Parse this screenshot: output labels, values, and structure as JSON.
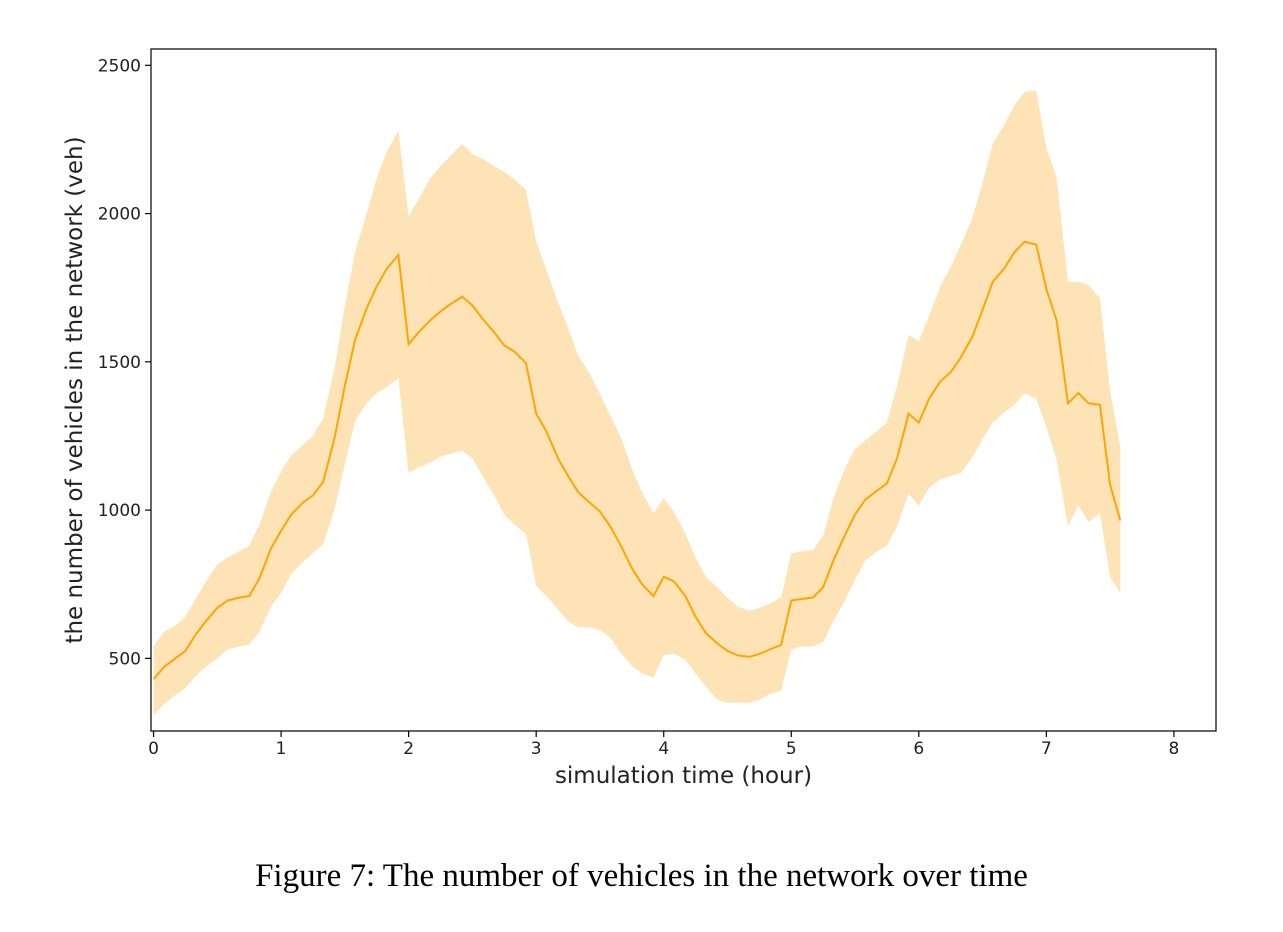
{
  "caption": "Figure 7: The number of vehicles in the network over time",
  "chart_data": {
    "type": "line",
    "title": "",
    "xlabel": "simulation time (hour)",
    "ylabel": "the number of vehicles in the network (veh)",
    "xlim": [
      -0.02,
      8.33
    ],
    "ylim": [
      255,
      2555
    ],
    "x_ticks": [
      0,
      1,
      2,
      3,
      4,
      5,
      6,
      7,
      8
    ],
    "y_ticks": [
      500,
      1000,
      1500,
      2000,
      2500
    ],
    "grid": false,
    "legend": "none",
    "colors": {
      "line": "#ffa500",
      "band": "#fde3b6"
    },
    "series": [
      {
        "x": [
          0,
          0.08,
          0.17,
          0.25,
          0.33,
          0.42,
          0.5,
          0.58,
          0.67,
          0.75,
          0.83,
          0.92,
          1.0,
          1.08,
          1.17,
          1.25,
          1.33,
          1.42,
          1.5,
          1.58,
          1.67,
          1.75,
          1.83,
          1.92,
          2.0,
          2.08,
          2.17,
          2.25,
          2.33,
          2.42,
          2.5,
          2.58,
          2.67,
          2.75,
          2.83,
          2.92,
          3.0,
          3.08,
          3.17,
          3.25,
          3.33,
          3.42,
          3.5,
          3.58,
          3.67,
          3.75,
          3.83,
          3.92,
          4.0,
          4.08,
          4.17,
          4.25,
          4.33,
          4.42,
          4.5,
          4.58,
          4.67,
          4.75,
          4.83,
          4.92,
          5.0,
          5.08,
          5.17,
          5.25,
          5.33,
          5.42,
          5.5,
          5.58,
          5.67,
          5.75,
          5.83,
          5.92,
          6.0,
          6.08,
          6.17,
          6.25,
          6.33,
          6.42,
          6.5,
          6.58,
          6.67,
          6.75,
          6.83,
          6.92,
          7.0,
          7.08,
          7.17,
          7.25,
          7.33,
          7.42,
          7.5,
          7.58
        ],
        "mean": [
          430,
          470,
          500,
          525,
          580,
          630,
          670,
          695,
          705,
          710,
          770,
          870,
          930,
          985,
          1025,
          1050,
          1095,
          1245,
          1420,
          1575,
          1680,
          1755,
          1815,
          1860,
          1560,
          1600,
          1640,
          1670,
          1695,
          1720,
          1690,
          1645,
          1600,
          1555,
          1535,
          1495,
          1325,
          1265,
          1175,
          1115,
          1060,
          1025,
          995,
          945,
          875,
          805,
          750,
          710,
          775,
          760,
          710,
          640,
          585,
          550,
          525,
          510,
          505,
          515,
          530,
          545,
          695,
          700,
          705,
          740,
          830,
          915,
          985,
          1035,
          1065,
          1090,
          1175,
          1325,
          1295,
          1375,
          1435,
          1465,
          1515,
          1585,
          1675,
          1770,
          1815,
          1870,
          1905,
          1895,
          1745,
          1640,
          1360,
          1395,
          1360,
          1355,
          1085,
          965
        ],
        "upper": [
          540,
          590,
          610,
          640,
          700,
          765,
          815,
          840,
          860,
          880,
          950,
          1060,
          1130,
          1185,
          1220,
          1250,
          1310,
          1480,
          1690,
          1870,
          2000,
          2120,
          2210,
          2280,
          1990,
          2050,
          2120,
          2160,
          2195,
          2235,
          2200,
          2185,
          2160,
          2140,
          2115,
          2080,
          1905,
          1810,
          1700,
          1615,
          1520,
          1460,
          1390,
          1320,
          1240,
          1140,
          1060,
          990,
          1040,
          995,
          920,
          840,
          775,
          740,
          705,
          675,
          660,
          670,
          685,
          705,
          855,
          860,
          865,
          915,
          1040,
          1140,
          1205,
          1235,
          1265,
          1295,
          1420,
          1590,
          1570,
          1655,
          1755,
          1820,
          1895,
          1985,
          2105,
          2235,
          2300,
          2365,
          2410,
          2415,
          2220,
          2120,
          1770,
          1770,
          1760,
          1715,
          1400,
          1215
        ],
        "lower": [
          310,
          345,
          375,
          400,
          440,
          475,
          500,
          530,
          540,
          545,
          590,
          675,
          720,
          785,
          825,
          855,
          885,
          1005,
          1155,
          1300,
          1360,
          1395,
          1415,
          1445,
          1125,
          1145,
          1160,
          1180,
          1190,
          1200,
          1175,
          1115,
          1050,
          985,
          950,
          920,
          745,
          710,
          665,
          625,
          605,
          605,
          595,
          570,
          515,
          475,
          450,
          435,
          510,
          515,
          495,
          450,
          405,
          360,
          350,
          350,
          350,
          360,
          380,
          390,
          530,
          540,
          540,
          555,
          625,
          695,
          765,
          830,
          860,
          880,
          945,
          1055,
          1015,
          1075,
          1105,
          1115,
          1125,
          1180,
          1240,
          1295,
          1330,
          1355,
          1395,
          1375,
          1280,
          1170,
          945,
          1015,
          960,
          990,
          775,
          720
        ]
      }
    ]
  }
}
